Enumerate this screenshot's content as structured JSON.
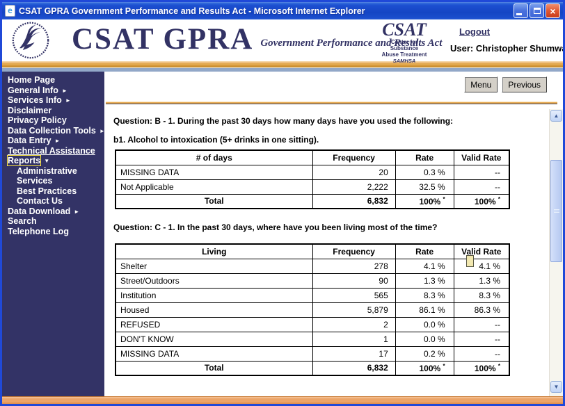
{
  "window": {
    "title": "CSAT GPRA Government Performance and Results Act - Microsoft Internet Explorer"
  },
  "icons": {
    "submenu": "►",
    "expanded": "▼",
    "scroll_up": "▲",
    "scroll_down": "▼",
    "close": "×",
    "ie": "e"
  },
  "header": {
    "logo_title": "CSAT GPRA",
    "logo_subtitle": "Government Performance and Results Act",
    "csat_logo": {
      "acronym": "CSAT",
      "line1": "Center for Substance",
      "line2": "Abuse Treatment",
      "line3": "SAMHSA"
    },
    "logout_label": "Logout",
    "user_label": "User: Christopher Shumway"
  },
  "sidebar": {
    "items": [
      {
        "label": "Home Page"
      },
      {
        "label": "General Info",
        "arrow": "submenu"
      },
      {
        "label": "Services Info",
        "arrow": "submenu"
      },
      {
        "label": "Disclaimer"
      },
      {
        "label": "Privacy Policy"
      },
      {
        "label": "Data Collection Tools",
        "arrow": "submenu"
      },
      {
        "label": "Data Entry",
        "arrow": "submenu"
      },
      {
        "label": "Technical Assistance",
        "underline": true
      },
      {
        "label": "Reports",
        "arrow": "expanded",
        "focused": true
      },
      {
        "label": "Administrative",
        "indent": true
      },
      {
        "label": "Services",
        "indent": true
      },
      {
        "label": "Best Practices",
        "indent": true
      },
      {
        "label": "Contact Us",
        "indent": true
      },
      {
        "label": "Data Download",
        "arrow": "submenu"
      },
      {
        "label": "Search"
      },
      {
        "label": "Telephone Log"
      }
    ]
  },
  "toolbar": {
    "menu_label": "Menu",
    "previous_label": "Previous"
  },
  "content": {
    "question_b_line1": "Question: B - 1. During the past 30 days how many days have you used the following:",
    "question_b_line2": "b1. Alcohol to intoxication (5+ drinks in one sitting).",
    "question_c": "Question: C - 1. In the past 30 days, where have you been living most of the time?"
  },
  "tables": [
    {
      "headers": [
        "# of days",
        "Frequency",
        "Rate",
        "Valid Rate"
      ],
      "rows": [
        [
          "MISSING DATA",
          "20",
          "0.3 %",
          "--"
        ],
        [
          "Not Applicable",
          "2,222",
          "32.5 %",
          "--"
        ],
        [
          "Total",
          "6,832",
          "100% *",
          "100% *"
        ]
      ]
    },
    {
      "headers": [
        "Living",
        "Frequency",
        "Rate",
        "Valid Rate"
      ],
      "rows": [
        [
          "Shelter",
          "278",
          "4.1 %",
          "4.1 %"
        ],
        [
          "Street/Outdoors",
          "90",
          "1.3 %",
          "1.3 %"
        ],
        [
          "Institution",
          "565",
          "8.3 %",
          "8.3 %"
        ],
        [
          "Housed",
          "5,879",
          "86.1 %",
          "86.3 %"
        ],
        [
          "REFUSED",
          "2",
          "0.0 %",
          "--"
        ],
        [
          "DON'T KNOW",
          "1",
          "0.0 %",
          "--"
        ],
        [
          "MISSING DATA",
          "17",
          "0.2 %",
          "--"
        ],
        [
          "Total",
          "6,832",
          "100% *",
          "100% *"
        ]
      ]
    }
  ],
  "colors": {
    "sidebar_bg": "#333366",
    "logo_navy": "#323264",
    "accent_gold": "#E2A84E",
    "focus_yellow": "#FFE73F",
    "titlebar_blue": "#1545C4",
    "bottom_orange": "#ECA468"
  }
}
